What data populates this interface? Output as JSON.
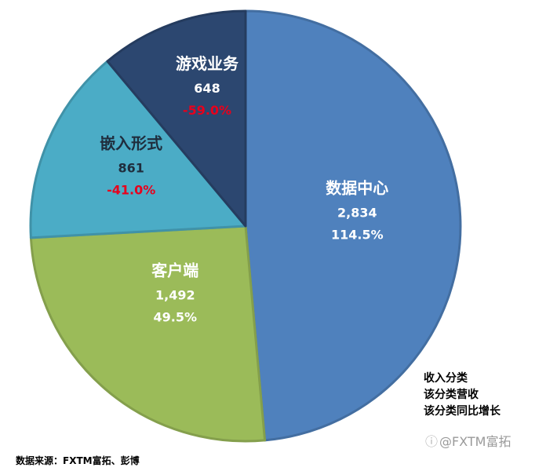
{
  "chart_data": {
    "type": "pie",
    "title": "",
    "slices": [
      {
        "label": "数据中心",
        "value": 2834,
        "value_label": "2,834",
        "growth": "114.5%",
        "growth_negative": false,
        "color": "#4f81bd",
        "text_color": "#ffffff"
      },
      {
        "label": "客户端",
        "value": 1492,
        "value_label": "1,492",
        "growth": "49.5%",
        "growth_negative": false,
        "color": "#9bbb59",
        "text_color": "#ffffff"
      },
      {
        "label": "嵌入形式",
        "value": 861,
        "value_label": "861",
        "growth": "-41.0%",
        "growth_negative": true,
        "color": "#4bacc6",
        "text_color": "#1f2d3d"
      },
      {
        "label": "游戏业务",
        "value": 648,
        "value_label": "648",
        "growth": "-59.0%",
        "growth_negative": true,
        "color": "#2c4770",
        "text_color": "#ffffff"
      }
    ],
    "negative_color": "#e8001c",
    "start": "12 o'clock, clockwise"
  },
  "legend": {
    "line1": "收入分类",
    "line2": "该分类营收",
    "line3": "该分类同比增长"
  },
  "source": "数据来源：FXTM富拓、彭博",
  "watermark": "@FXTM富拓"
}
